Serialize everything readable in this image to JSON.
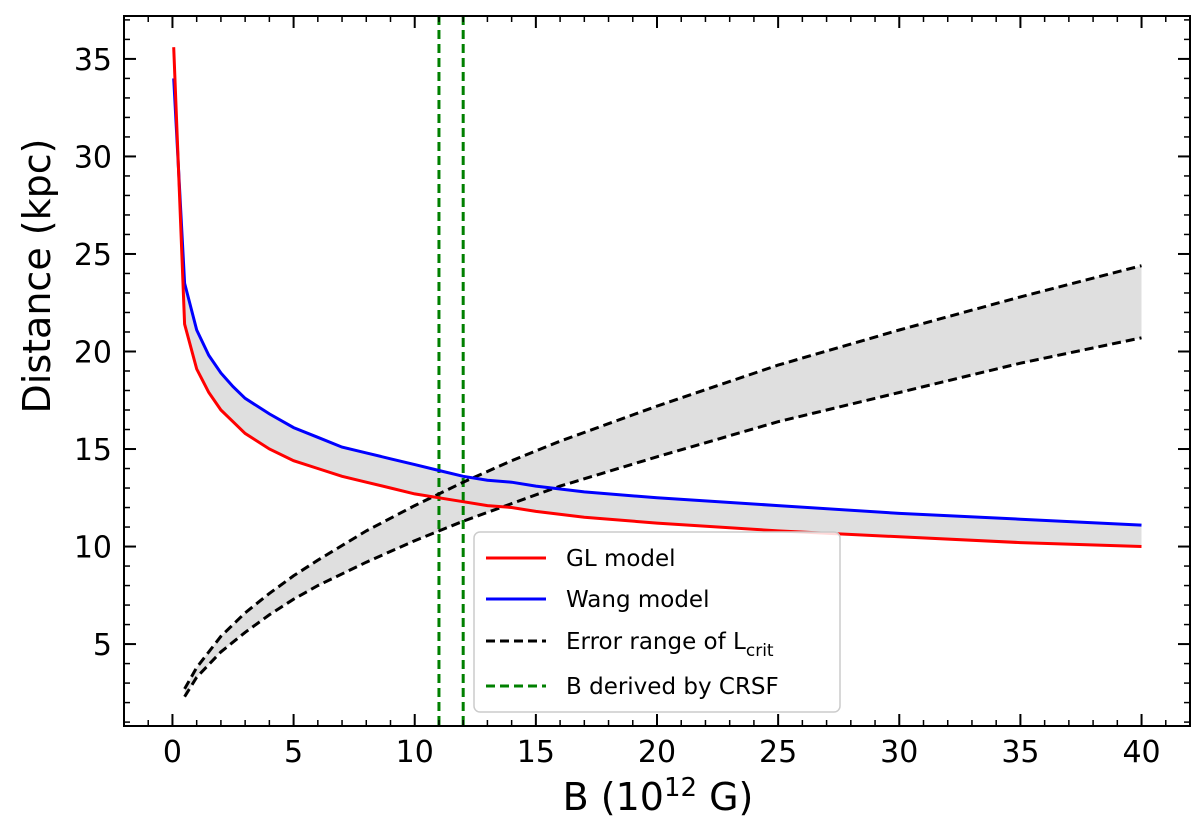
{
  "chart_data": {
    "type": "line",
    "title": "",
    "xlabel": {
      "main": "B (10",
      "sup": "12",
      "end": " G)"
    },
    "ylabel": "Distance (kpc)",
    "xlim": [
      -2.0,
      42.0
    ],
    "ylim": [
      0.8,
      37.2
    ],
    "xticks": [
      0,
      5,
      10,
      15,
      20,
      25,
      30,
      35,
      40
    ],
    "yticks": [
      5,
      10,
      15,
      20,
      25,
      30,
      35
    ],
    "x_minor_step": 1,
    "y_minor_step": 1,
    "legend_position": "lower-right",
    "series": [
      {
        "name": "GL model",
        "color": "#ff0000",
        "dash": "solid",
        "x": [
          0.05,
          0.5,
          1,
          1.5,
          2,
          2.5,
          3,
          4,
          5,
          6,
          7,
          8,
          9,
          10,
          11,
          12,
          13,
          14,
          15,
          17,
          20,
          25,
          30,
          35,
          40
        ],
        "y": [
          35.6,
          21.4,
          19.1,
          17.9,
          17.0,
          16.4,
          15.8,
          15.0,
          14.4,
          14.0,
          13.6,
          13.3,
          13.0,
          12.7,
          12.5,
          12.3,
          12.1,
          12.0,
          11.8,
          11.5,
          11.2,
          10.8,
          10.5,
          10.2,
          10.0
        ]
      },
      {
        "name": "Wang model",
        "color": "#0000ff",
        "dash": "solid",
        "x": [
          0.05,
          0.5,
          1,
          1.5,
          2,
          2.5,
          3,
          4,
          5,
          6,
          7,
          8,
          9,
          10,
          11,
          12,
          13,
          14,
          15,
          17,
          20,
          25,
          30,
          35,
          40
        ],
        "y": [
          34.0,
          23.5,
          21.1,
          19.8,
          18.9,
          18.2,
          17.6,
          16.8,
          16.1,
          15.6,
          15.1,
          14.8,
          14.5,
          14.2,
          13.9,
          13.6,
          13.4,
          13.3,
          13.1,
          12.8,
          12.5,
          12.1,
          11.7,
          11.4,
          11.1
        ]
      },
      {
        "name": "Error range of L",
        "name_sub": "crit",
        "color": "#000000",
        "dash": "dashed",
        "x": [
          0.5,
          1,
          2,
          3,
          4,
          5,
          6,
          8,
          10,
          12,
          14,
          16,
          20,
          25,
          30,
          35,
          40
        ],
        "y_upper": [
          2.7,
          3.8,
          5.4,
          6.6,
          7.6,
          8.5,
          9.3,
          10.8,
          12.1,
          13.3,
          14.4,
          15.4,
          17.2,
          19.3,
          21.1,
          22.8,
          24.4
        ],
        "y_lower": [
          2.3,
          3.3,
          4.6,
          5.6,
          6.5,
          7.3,
          8.0,
          9.2,
          10.3,
          11.3,
          12.2,
          13.1,
          14.6,
          16.4,
          17.9,
          19.4,
          20.7
        ]
      },
      {
        "name": "B derived by CRSF",
        "color": "#008000",
        "dash": "dashed",
        "vlines": [
          11,
          12
        ]
      }
    ]
  }
}
